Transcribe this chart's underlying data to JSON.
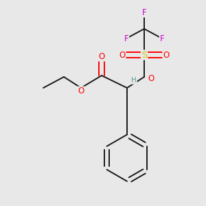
{
  "bg_color": "#e8e8e8",
  "bond_color": "#1a1a1a",
  "atom_colors": {
    "O": "#ff0000",
    "S": "#cccc00",
    "F": "#cc00cc",
    "H": "#5a9a9a",
    "C": "#1a1a1a"
  },
  "figsize": [
    3.0,
    3.0
  ],
  "dpi": 100
}
